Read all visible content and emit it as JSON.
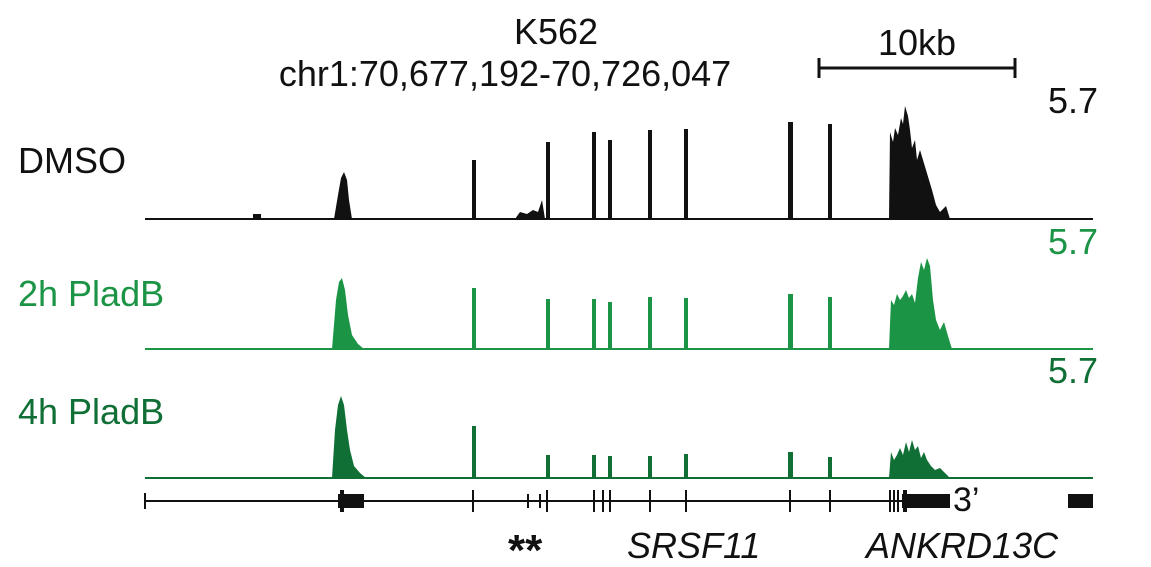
{
  "header": {
    "cell_line": "K562",
    "region": "chr1:70,677,192-70,726,047",
    "scale_label": "10kb"
  },
  "tracks": [
    {
      "label": "DMSO",
      "scale": "5.7",
      "color": "#111111"
    },
    {
      "label": "2h PladB",
      "scale": "5.7",
      "color": "#1b9445"
    },
    {
      "label": "4h PladB",
      "scale": "5.7",
      "color": "#0f6f35"
    }
  ],
  "annotation": {
    "stars": "**",
    "utr_label": "3’",
    "genes": [
      {
        "name": "SRSF11"
      },
      {
        "name": "ANKRD13C"
      }
    ]
  }
}
